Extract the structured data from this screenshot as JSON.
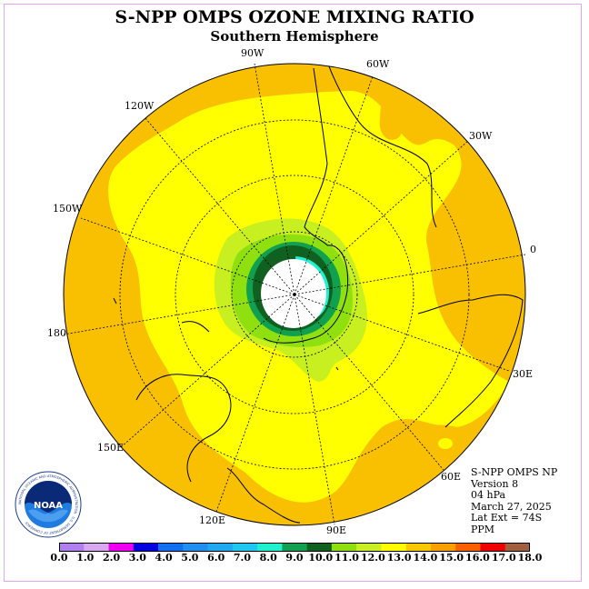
{
  "title": "S-NPP OMPS OZONE MIXING RATIO",
  "subtitle": "Southern Hemisphere",
  "longitude_labels": [
    "90W",
    "60W",
    "120W",
    "30W",
    "150W",
    "0",
    "180",
    "30E",
    "150E",
    "60E",
    "120E",
    "90E"
  ],
  "info": {
    "instrument": "S-NPP OMPS NP",
    "version": "Version 8",
    "pressure": "04 hPa",
    "date": "March 27, 2025",
    "lat_ext": "Lat Ext = 74S",
    "units": "PPM"
  },
  "logo": {
    "text": "NOAA",
    "ring_text": "NATIONAL OCEANIC AND ATMOSPHERIC ADMINISTRATION · U.S. DEPARTMENT OF COMMERCE"
  },
  "colorbar": {
    "ticks": [
      "0.0",
      "1.0",
      "2.0",
      "3.0",
      "4.0",
      "5.0",
      "6.0",
      "7.0",
      "8.0",
      "9.0",
      "10.0",
      "11.0",
      "12.0",
      "13.0",
      "14.0",
      "15.0",
      "16.0",
      "17.0",
      "18.0"
    ],
    "colors": [
      "#b080f0",
      "#d8a8f0",
      "#f000f0",
      "#0000e0",
      "#1070f0",
      "#2090f0",
      "#20a8f0",
      "#20c8f0",
      "#20f0d0",
      "#10a050",
      "#106020",
      "#90e010",
      "#c8f020",
      "#ffff00",
      "#f8c800",
      "#f8a000",
      "#f86000",
      "#f00000",
      "#a06040"
    ]
  },
  "colors": {
    "background_ozone": "#f8c000",
    "yellow": "#ffff00",
    "lime": "#c8f020",
    "green_light": "#90e010",
    "green": "#10a050",
    "green_dark": "#106020",
    "cyan": "#20f0d0",
    "pole_hole": "#ffffff",
    "frame": "#e0a8e8"
  }
}
